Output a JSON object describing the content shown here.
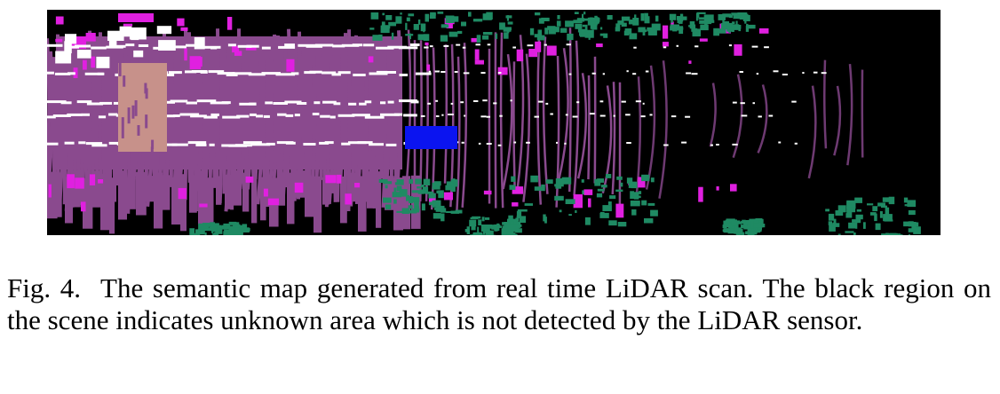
{
  "figure": {
    "colors": {
      "background": "#000000",
      "road": "#8a4a8e",
      "road_dark": "#6e3a72",
      "sidewalk": "#e020e0",
      "vegetation": "#1f8a63",
      "lane_marking": "#ffffff",
      "person": "#c7918a",
      "vehicle": "#0b14f0"
    }
  },
  "caption": {
    "label": "Fig. 4.",
    "text": "The semantic map generated from real time LiDAR scan. The black region on the scene indicates unknown area which is not detected by the LiDAR sensor."
  }
}
